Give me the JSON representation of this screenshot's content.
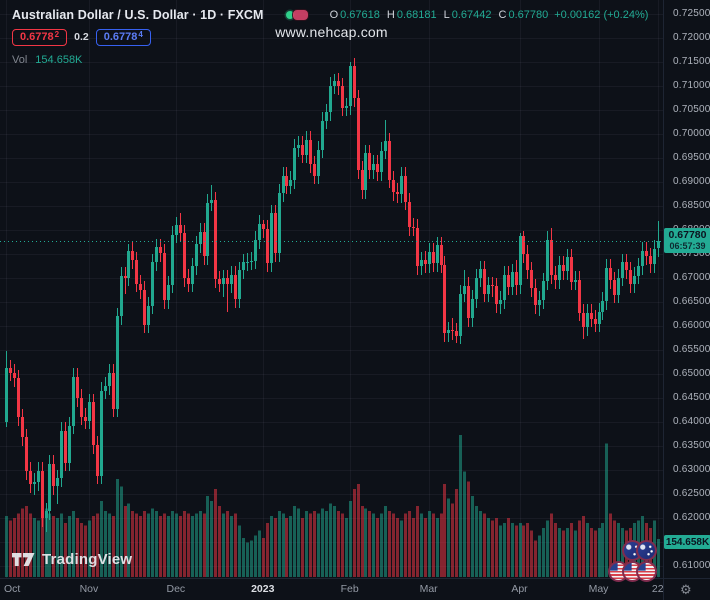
{
  "header": {
    "title": "Australian Dollar / U.S. Dollar · 1D · FXCM",
    "ohlc": {
      "o_label": "O",
      "o": "0.67618",
      "h_label": "H",
      "h": "0.68181",
      "l_label": "L",
      "l": "0.67442",
      "c_label": "C",
      "c": "0.67780",
      "change": "+0.00162 (+0.24%)"
    },
    "bid": {
      "main": "0.6778",
      "sup": "2"
    },
    "spread": "0.2",
    "ask": {
      "main": "0.6778",
      "sup": "4"
    },
    "vol_label": "Vol",
    "vol_value": "154.658K"
  },
  "watermark": "www.nehcap.com",
  "logo_text": "TradingView",
  "price_scale": {
    "current_price_label": "0.67780",
    "countdown": "06:57:39",
    "volume_value_label": "154.658K"
  },
  "chart_data": {
    "type": "candlestick",
    "symbol": "AUD/USD",
    "interval": "1D",
    "exchange": "FXCM",
    "current_price": 0.6778,
    "colors": {
      "up": "#21a88f",
      "down": "#f23645",
      "grid": "rgba(165,176,205,0.07)",
      "dotted_line": "#22ab94"
    },
    "y_ticks": [
      "0.72500",
      "0.72000",
      "0.71500",
      "0.71000",
      "0.70500",
      "0.70000",
      "0.69500",
      "0.69000",
      "0.68500",
      "0.68000",
      "0.67500",
      "0.67000",
      "0.66500",
      "0.66000",
      "0.65500",
      "0.65000",
      "0.64500",
      "0.64000",
      "0.63500",
      "0.63000",
      "0.62500",
      "0.62000",
      "0.61500",
      "0.61000"
    ],
    "x_ticks": [
      {
        "label": "Oct",
        "bar": 0,
        "bright": false
      },
      {
        "label": "Nov",
        "bar": 21,
        "bright": false
      },
      {
        "label": "Dec",
        "bar": 43,
        "bright": false
      },
      {
        "label": "2023",
        "bar": 65,
        "bright": true
      },
      {
        "label": "Feb",
        "bar": 87,
        "bright": false
      },
      {
        "label": "Mar",
        "bar": 107,
        "bright": false
      },
      {
        "label": "Apr",
        "bar": 130,
        "bright": false
      },
      {
        "label": "May",
        "bar": 150,
        "bright": false
      },
      {
        "label": "22",
        "bar": 165,
        "bright": false
      }
    ],
    "volume_max_k": 580,
    "candles_format": [
      "open",
      "high",
      "low",
      "close",
      "volume_k"
    ],
    "candles": [
      [
        0.64,
        0.6547,
        0.639,
        0.6512,
        250
      ],
      [
        0.6512,
        0.653,
        0.6485,
        0.6503,
        230
      ],
      [
        0.6503,
        0.6521,
        0.6473,
        0.6491,
        240
      ],
      [
        0.6491,
        0.6509,
        0.6392,
        0.641,
        260
      ],
      [
        0.641,
        0.6428,
        0.635,
        0.6368,
        280
      ],
      [
        0.6368,
        0.6386,
        0.628,
        0.6298,
        290
      ],
      [
        0.6298,
        0.6316,
        0.6252,
        0.627,
        260
      ],
      [
        0.627,
        0.6293,
        0.6247,
        0.6275,
        240
      ],
      [
        0.6275,
        0.6316,
        0.6257,
        0.6298,
        230
      ],
      [
        0.6298,
        0.6316,
        0.6182,
        0.62,
        300
      ],
      [
        0.62,
        0.6232,
        0.617,
        0.6214,
        280
      ],
      [
        0.6214,
        0.6331,
        0.6196,
        0.6313,
        260
      ],
      [
        0.6313,
        0.6331,
        0.6248,
        0.6266,
        250
      ],
      [
        0.6266,
        0.6301,
        0.6229,
        0.6283,
        240
      ],
      [
        0.6283,
        0.6399,
        0.6265,
        0.6381,
        260
      ],
      [
        0.6381,
        0.6399,
        0.6297,
        0.6315,
        220
      ],
      [
        0.6315,
        0.641,
        0.6297,
        0.6392,
        250
      ],
      [
        0.6392,
        0.6512,
        0.6374,
        0.6494,
        270
      ],
      [
        0.6494,
        0.6512,
        0.6432,
        0.645,
        240
      ],
      [
        0.645,
        0.6468,
        0.6393,
        0.6411,
        220
      ],
      [
        0.6411,
        0.6429,
        0.6385,
        0.6403,
        210
      ],
      [
        0.6403,
        0.6459,
        0.6385,
        0.6441,
        230
      ],
      [
        0.6441,
        0.6459,
        0.6334,
        0.6352,
        250
      ],
      [
        0.6352,
        0.637,
        0.627,
        0.6288,
        260
      ],
      [
        0.6288,
        0.6483,
        0.627,
        0.6465,
        310
      ],
      [
        0.6465,
        0.6493,
        0.6447,
        0.6475,
        270
      ],
      [
        0.6475,
        0.6521,
        0.6457,
        0.6503,
        260
      ],
      [
        0.6503,
        0.6521,
        0.641,
        0.6428,
        250
      ],
      [
        0.6428,
        0.6638,
        0.641,
        0.662,
        400
      ],
      [
        0.662,
        0.6722,
        0.6602,
        0.6704,
        370
      ],
      [
        0.6704,
        0.6722,
        0.6667,
        0.6701,
        290
      ],
      [
        0.6701,
        0.677,
        0.6683,
        0.6757,
        300
      ],
      [
        0.6757,
        0.6775,
        0.6719,
        0.6737,
        270
      ],
      [
        0.6737,
        0.6755,
        0.667,
        0.6688,
        260
      ],
      [
        0.6688,
        0.6706,
        0.6657,
        0.6675,
        250
      ],
      [
        0.6675,
        0.6693,
        0.6585,
        0.6603,
        270
      ],
      [
        0.6603,
        0.666,
        0.6585,
        0.6642,
        260
      ],
      [
        0.6642,
        0.6751,
        0.6624,
        0.6733,
        280
      ],
      [
        0.6733,
        0.6782,
        0.6715,
        0.6764,
        270
      ],
      [
        0.6764,
        0.6782,
        0.6734,
        0.6752,
        250
      ],
      [
        0.6752,
        0.677,
        0.6636,
        0.6654,
        260
      ],
      [
        0.6654,
        0.6704,
        0.6636,
        0.6686,
        250
      ],
      [
        0.6686,
        0.6808,
        0.6668,
        0.679,
        270
      ],
      [
        0.679,
        0.6828,
        0.6772,
        0.681,
        260
      ],
      [
        0.681,
        0.6836,
        0.6775,
        0.6793,
        250
      ],
      [
        0.6793,
        0.6811,
        0.6682,
        0.67,
        270
      ],
      [
        0.67,
        0.6718,
        0.667,
        0.6688,
        260
      ],
      [
        0.6688,
        0.6742,
        0.667,
        0.6724,
        250
      ],
      [
        0.6724,
        0.6788,
        0.6706,
        0.677,
        260
      ],
      [
        0.677,
        0.6814,
        0.6752,
        0.6796,
        270
      ],
      [
        0.6796,
        0.6814,
        0.6727,
        0.6745,
        260
      ],
      [
        0.6745,
        0.6875,
        0.6727,
        0.6857,
        330
      ],
      [
        0.6857,
        0.6893,
        0.6839,
        0.6862,
        310
      ],
      [
        0.6862,
        0.688,
        0.6679,
        0.6697,
        360
      ],
      [
        0.6697,
        0.6715,
        0.667,
        0.6688,
        290
      ],
      [
        0.6688,
        0.6717,
        0.6661,
        0.6699,
        260
      ],
      [
        0.6699,
        0.6717,
        0.6629,
        0.6687,
        270
      ],
      [
        0.6687,
        0.6724,
        0.6669,
        0.6706,
        250
      ],
      [
        0.6706,
        0.6724,
        0.6638,
        0.6656,
        260
      ],
      [
        0.6656,
        0.6734,
        0.6638,
        0.6716,
        210
      ],
      [
        0.6716,
        0.6751,
        0.6698,
        0.6733,
        160
      ],
      [
        0.6733,
        0.6752,
        0.6715,
        0.6734,
        140
      ],
      [
        0.6734,
        0.6754,
        0.6716,
        0.6736,
        150
      ],
      [
        0.6736,
        0.6797,
        0.6718,
        0.6779,
        170
      ],
      [
        0.6779,
        0.6831,
        0.6761,
        0.6813,
        190
      ],
      [
        0.6813,
        0.682,
        0.6784,
        0.6802,
        160
      ],
      [
        0.6802,
        0.682,
        0.6713,
        0.6731,
        220
      ],
      [
        0.6731,
        0.6853,
        0.6713,
        0.6835,
        250
      ],
      [
        0.6835,
        0.6853,
        0.6734,
        0.6752,
        240
      ],
      [
        0.6752,
        0.6895,
        0.6734,
        0.6877,
        270
      ],
      [
        0.6877,
        0.6931,
        0.6859,
        0.6913,
        260
      ],
      [
        0.6913,
        0.6931,
        0.6874,
        0.6892,
        240
      ],
      [
        0.6892,
        0.6922,
        0.6874,
        0.6904,
        250
      ],
      [
        0.6904,
        0.6989,
        0.6886,
        0.6971,
        290
      ],
      [
        0.6971,
        0.6996,
        0.6953,
        0.6978,
        280
      ],
      [
        0.6978,
        0.6996,
        0.6939,
        0.6957,
        240
      ],
      [
        0.6957,
        0.7006,
        0.6939,
        0.6988,
        270
      ],
      [
        0.6988,
        0.7006,
        0.6919,
        0.6937,
        260
      ],
      [
        0.6937,
        0.6955,
        0.6895,
        0.6913,
        270
      ],
      [
        0.6913,
        0.6985,
        0.6895,
        0.6967,
        260
      ],
      [
        0.6967,
        0.7046,
        0.6949,
        0.7028,
        280
      ],
      [
        0.7028,
        0.7063,
        0.701,
        0.7045,
        270
      ],
      [
        0.7045,
        0.7119,
        0.7027,
        0.7101,
        300
      ],
      [
        0.7101,
        0.7125,
        0.7083,
        0.711,
        290
      ],
      [
        0.711,
        0.7128,
        0.7081,
        0.7099,
        270
      ],
      [
        0.7099,
        0.7117,
        0.7037,
        0.7055,
        260
      ],
      [
        0.7055,
        0.7076,
        0.7037,
        0.7058,
        240
      ],
      [
        0.7058,
        0.715,
        0.704,
        0.7142,
        310
      ],
      [
        0.7142,
        0.7158,
        0.7056,
        0.7074,
        360
      ],
      [
        0.7074,
        0.7092,
        0.6907,
        0.6925,
        380
      ],
      [
        0.6925,
        0.6943,
        0.6865,
        0.6883,
        290
      ],
      [
        0.6883,
        0.6978,
        0.6865,
        0.696,
        280
      ],
      [
        0.696,
        0.6978,
        0.6907,
        0.6925,
        270
      ],
      [
        0.6925,
        0.6956,
        0.6907,
        0.6938,
        260
      ],
      [
        0.6938,
        0.6956,
        0.6902,
        0.692,
        240
      ],
      [
        0.692,
        0.6983,
        0.6902,
        0.6965,
        260
      ],
      [
        0.6965,
        0.7029,
        0.6947,
        0.6985,
        290
      ],
      [
        0.6985,
        0.7003,
        0.6887,
        0.6905,
        270
      ],
      [
        0.6905,
        0.6923,
        0.6861,
        0.6879,
        260
      ],
      [
        0.6879,
        0.6897,
        0.6856,
        0.6874,
        240
      ],
      [
        0.6874,
        0.6931,
        0.6856,
        0.6913,
        230
      ],
      [
        0.6913,
        0.6931,
        0.6841,
        0.6859,
        260
      ],
      [
        0.6859,
        0.6877,
        0.6788,
        0.6806,
        270
      ],
      [
        0.6806,
        0.6824,
        0.6787,
        0.6805,
        240
      ],
      [
        0.6805,
        0.6823,
        0.6706,
        0.6724,
        290
      ],
      [
        0.6724,
        0.6755,
        0.6706,
        0.6737,
        260
      ],
      [
        0.6737,
        0.6757,
        0.6711,
        0.6729,
        240
      ],
      [
        0.6729,
        0.6773,
        0.6711,
        0.6755,
        270
      ],
      [
        0.6755,
        0.6773,
        0.6713,
        0.6731,
        260
      ],
      [
        0.6731,
        0.6786,
        0.6713,
        0.6768,
        240
      ],
      [
        0.6768,
        0.6786,
        0.671,
        0.6728,
        260
      ],
      [
        0.6728,
        0.6746,
        0.6567,
        0.6585,
        380
      ],
      [
        0.6585,
        0.6609,
        0.6567,
        0.6591,
        320
      ],
      [
        0.6591,
        0.6617,
        0.6571,
        0.6589,
        300
      ],
      [
        0.6589,
        0.6607,
        0.6564,
        0.658,
        360
      ],
      [
        0.658,
        0.6685,
        0.6562,
        0.6667,
        580
      ],
      [
        0.6667,
        0.6717,
        0.6649,
        0.6684,
        430
      ],
      [
        0.6684,
        0.6702,
        0.6598,
        0.6616,
        390
      ],
      [
        0.6616,
        0.6674,
        0.6598,
        0.6656,
        330
      ],
      [
        0.6656,
        0.6718,
        0.6638,
        0.67,
        290
      ],
      [
        0.67,
        0.6736,
        0.6682,
        0.6718,
        270
      ],
      [
        0.6718,
        0.6736,
        0.6649,
        0.6667,
        260
      ],
      [
        0.6667,
        0.6703,
        0.6649,
        0.6685,
        240
      ],
      [
        0.6685,
        0.6703,
        0.6661,
        0.6683,
        230
      ],
      [
        0.6683,
        0.6701,
        0.6627,
        0.6645,
        240
      ],
      [
        0.6645,
        0.6672,
        0.6625,
        0.6654,
        210
      ],
      [
        0.6654,
        0.6724,
        0.6636,
        0.6706,
        220
      ],
      [
        0.6706,
        0.6724,
        0.6664,
        0.6682,
        240
      ],
      [
        0.6682,
        0.673,
        0.6664,
        0.6712,
        220
      ],
      [
        0.6712,
        0.6738,
        0.6664,
        0.6685,
        210
      ],
      [
        0.6685,
        0.6793,
        0.6667,
        0.6787,
        220
      ],
      [
        0.6787,
        0.6798,
        0.6732,
        0.675,
        210
      ],
      [
        0.675,
        0.6768,
        0.6698,
        0.6716,
        220
      ],
      [
        0.6716,
        0.6734,
        0.6661,
        0.6679,
        190
      ],
      [
        0.6679,
        0.6697,
        0.6625,
        0.6643,
        150
      ],
      [
        0.6643,
        0.6672,
        0.662,
        0.6654,
        170
      ],
      [
        0.6654,
        0.6711,
        0.6636,
        0.6693,
        200
      ],
      [
        0.6693,
        0.6798,
        0.6675,
        0.678,
        230
      ],
      [
        0.678,
        0.6805,
        0.6688,
        0.6706,
        260
      ],
      [
        0.6706,
        0.6724,
        0.6678,
        0.6696,
        220
      ],
      [
        0.6696,
        0.6745,
        0.6678,
        0.6727,
        200
      ],
      [
        0.6727,
        0.6745,
        0.6696,
        0.6714,
        190
      ],
      [
        0.6714,
        0.6761,
        0.6696,
        0.6743,
        200
      ],
      [
        0.6743,
        0.6761,
        0.6674,
        0.6692,
        220
      ],
      [
        0.6692,
        0.6714,
        0.6674,
        0.6696,
        190
      ],
      [
        0.6696,
        0.6714,
        0.661,
        0.6628,
        230
      ],
      [
        0.6628,
        0.6646,
        0.6573,
        0.6598,
        250
      ],
      [
        0.6598,
        0.6645,
        0.658,
        0.6627,
        220
      ],
      [
        0.6627,
        0.6645,
        0.6597,
        0.6615,
        200
      ],
      [
        0.6615,
        0.6633,
        0.6587,
        0.6605,
        190
      ],
      [
        0.6605,
        0.6648,
        0.6587,
        0.663,
        200
      ],
      [
        0.663,
        0.667,
        0.6612,
        0.6652,
        220
      ],
      [
        0.6652,
        0.6739,
        0.6634,
        0.6721,
        545
      ],
      [
        0.6721,
        0.6739,
        0.6677,
        0.6695,
        260
      ],
      [
        0.6695,
        0.6713,
        0.6647,
        0.6665,
        230
      ],
      [
        0.6665,
        0.6719,
        0.6647,
        0.6701,
        220
      ],
      [
        0.6701,
        0.6751,
        0.6683,
        0.6733,
        200
      ],
      [
        0.6733,
        0.6751,
        0.6698,
        0.6716,
        190
      ],
      [
        0.6716,
        0.6734,
        0.6669,
        0.6687,
        200
      ],
      [
        0.6687,
        0.6723,
        0.6669,
        0.6705,
        220
      ],
      [
        0.6705,
        0.6742,
        0.6687,
        0.6724,
        230
      ],
      [
        0.6724,
        0.6774,
        0.6706,
        0.6756,
        250
      ],
      [
        0.6756,
        0.6774,
        0.6727,
        0.6745,
        220
      ],
      [
        0.6745,
        0.6763,
        0.6711,
        0.6729,
        200
      ],
      [
        0.6729,
        0.6779,
        0.6711,
        0.6761,
        230
      ],
      [
        0.67618,
        0.68181,
        0.67442,
        0.6778,
        154.658
      ]
    ]
  }
}
